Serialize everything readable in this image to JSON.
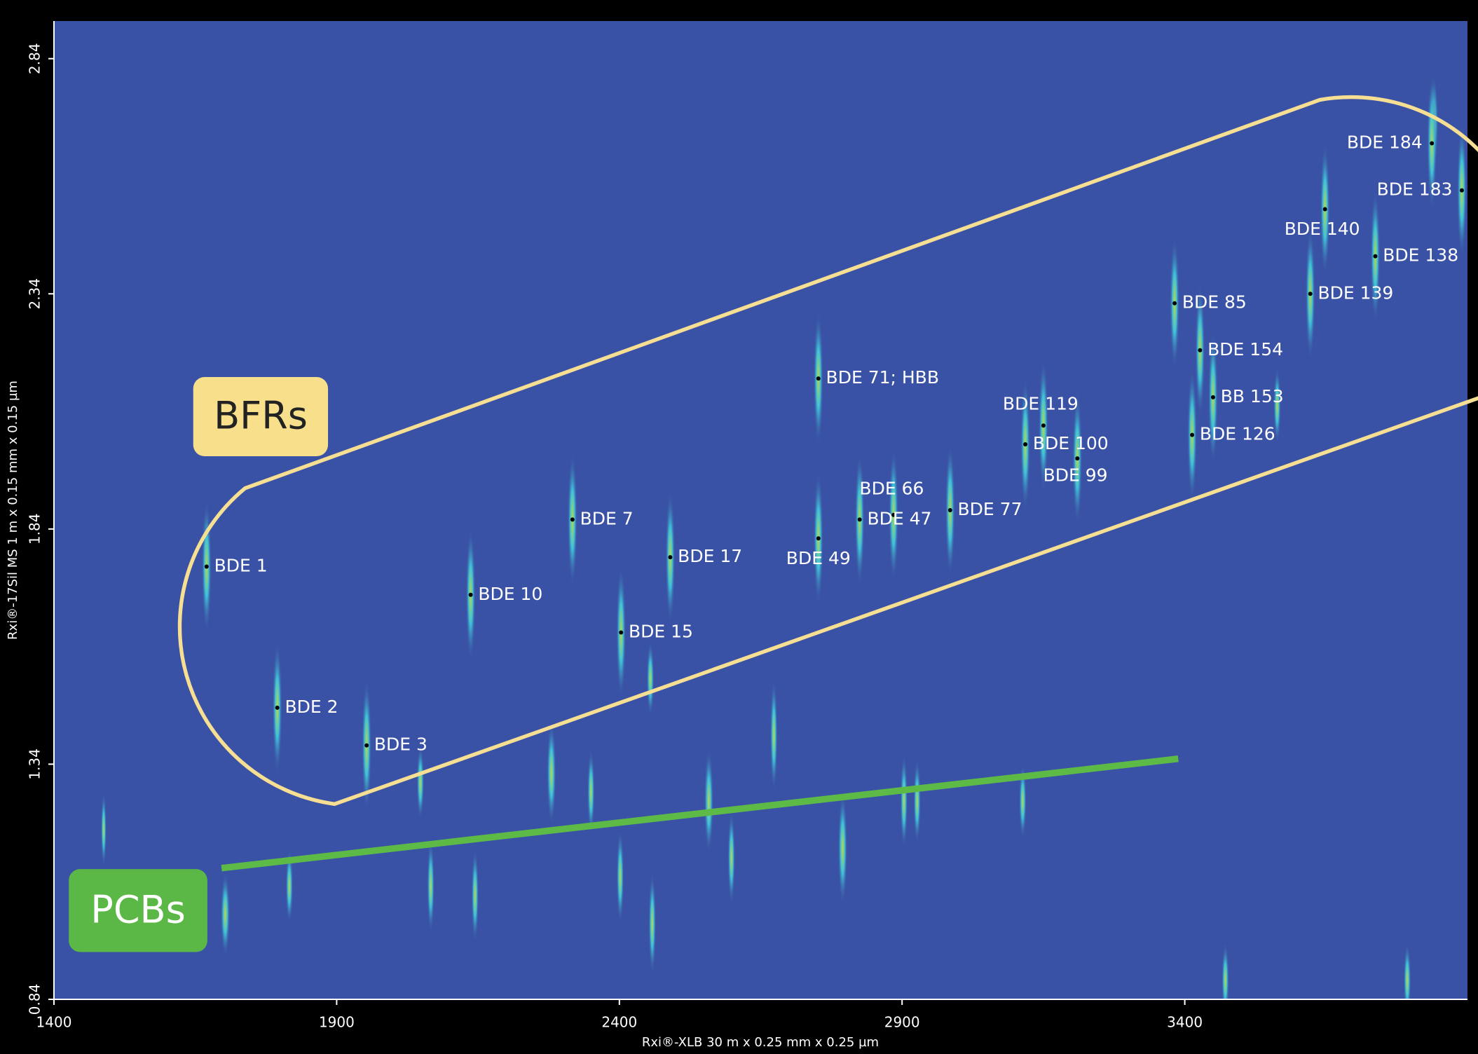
{
  "chart_data": {
    "type": "scatter",
    "x_label": "Rxi®-XLB 30 m x 0.25 mm x 0.25 µm",
    "y_label": "Rxi®-17Sil MS 1 m x 0.15 mm x 0.15 µm",
    "xlim": [
      1400,
      3900
    ],
    "ylim": [
      0.84,
      2.92
    ],
    "xticks": [
      1400,
      1900,
      2400,
      2900,
      3400
    ],
    "yticks": [
      0.84,
      1.34,
      1.84,
      2.34,
      2.84
    ],
    "annotations": [
      "BFRs",
      "PCBs"
    ],
    "labels": [
      "BDE 1",
      "BDE 2",
      "BDE 3",
      "BDE 10",
      "BDE 7",
      "BDE 15",
      "BDE 17",
      "BDE 71; HBB",
      "BDE 49",
      "BDE 66",
      "BDE 47",
      "BDE 77",
      "BDE 119",
      "BDE 100",
      "BDE 99",
      "BDE 85",
      "BDE 154",
      "BB 153",
      "BDE 126",
      "BDE 139",
      "BDE 138",
      "BDE 140",
      "BDE 183",
      "BDE 184"
    ],
    "x": [
      1670,
      1795,
      1953,
      2137,
      2317,
      2403,
      2490,
      2752,
      2752,
      2885,
      2825,
      2985,
      3150,
      3118,
      3210,
      3382,
      3427,
      3450,
      3413,
      3622,
      3737,
      3648,
      3890,
      3837
    ],
    "y": [
      1.76,
      1.46,
      1.38,
      1.7,
      1.86,
      1.62,
      1.78,
      2.16,
      1.82,
      1.87,
      1.86,
      1.88,
      2.06,
      2.02,
      1.99,
      2.32,
      2.22,
      2.12,
      2.04,
      2.34,
      2.42,
      2.52,
      2.56,
      2.66
    ]
  }
}
